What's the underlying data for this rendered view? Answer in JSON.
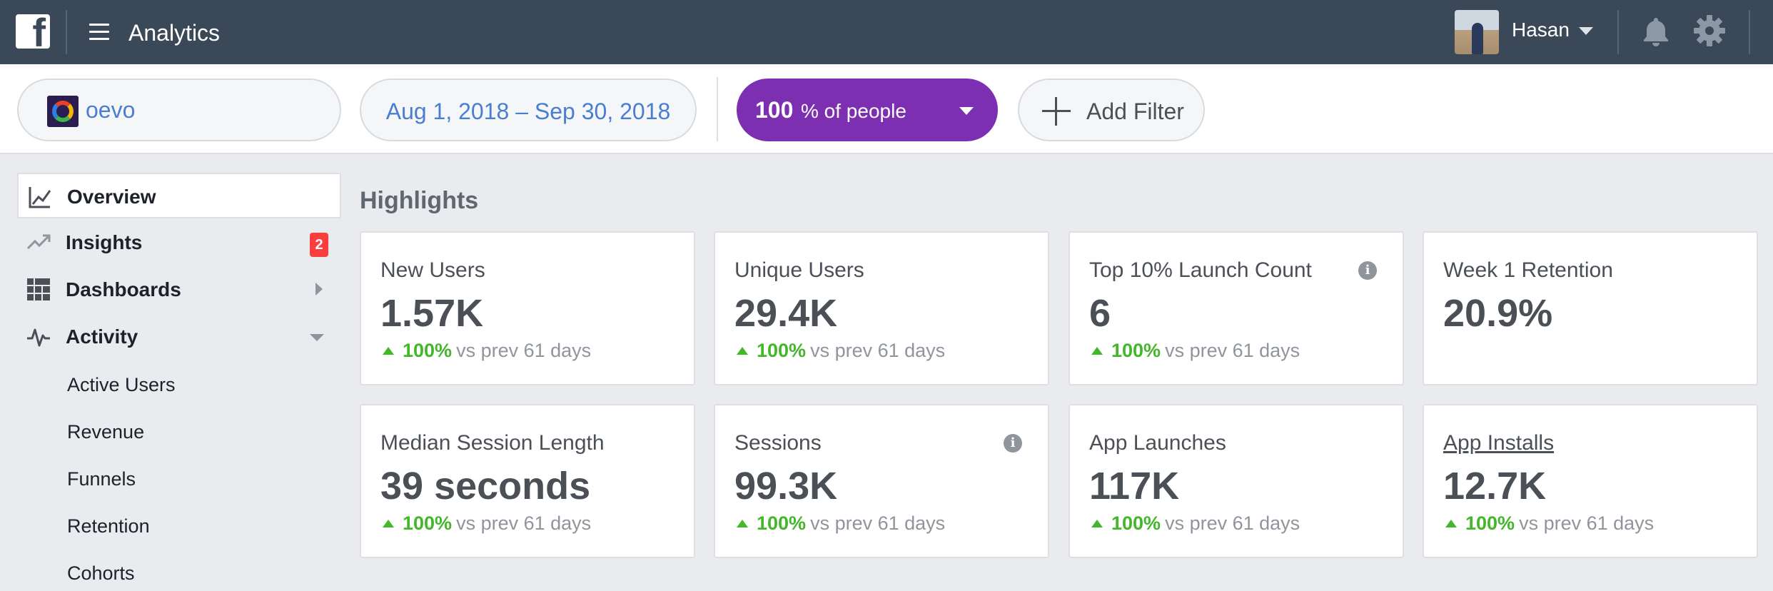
{
  "header": {
    "app_title": "Analytics",
    "user_name": "Hasan"
  },
  "filters": {
    "app_name": "oevo",
    "date_range": "Aug 1, 2018 – Sep 30, 2018",
    "people_percent": "100",
    "people_label": "% of people",
    "add_filter_label": "Add Filter"
  },
  "sidebar": {
    "items": [
      {
        "label": "Overview",
        "icon": "chart-icon"
      },
      {
        "label": "Insights",
        "icon": "trend-icon",
        "badge": "2"
      },
      {
        "label": "Dashboards",
        "icon": "grid-icon"
      },
      {
        "label": "Activity",
        "icon": "pulse-icon"
      }
    ],
    "activity_subitems": [
      "Active Users",
      "Revenue",
      "Funnels",
      "Retention",
      "Cohorts"
    ]
  },
  "main": {
    "section_title": "Highlights",
    "cards": [
      {
        "label": "New Users",
        "value": "1.57K",
        "change": "100%",
        "comparison": "vs prev 61 days"
      },
      {
        "label": "Unique Users",
        "value": "29.4K",
        "change": "100%",
        "comparison": "vs prev 61 days"
      },
      {
        "label": "Top 10% Launch Count",
        "value": "6",
        "change": "100%",
        "comparison": "vs prev 61 days",
        "info": "i"
      },
      {
        "label": "Week 1 Retention",
        "value": "20.9%"
      },
      {
        "label": "Median Session Length",
        "value": "39 seconds",
        "change": "100%",
        "comparison": "vs prev 61 days"
      },
      {
        "label": "Sessions",
        "value": "99.3K",
        "change": "100%",
        "comparison": "vs prev 61 days",
        "info": "i"
      },
      {
        "label": "App Launches",
        "value": "117K",
        "change": "100%",
        "comparison": "vs prev 61 days"
      },
      {
        "label": "App Installs",
        "value": "12.7K",
        "change": "100%",
        "comparison": "vs prev 61 days"
      }
    ]
  },
  "colors": {
    "topbar": "#3b4858",
    "people_pill": "#7d2fb1",
    "link": "#4a7ed0",
    "positive": "#42b72a",
    "badge": "#fa3e3e"
  }
}
